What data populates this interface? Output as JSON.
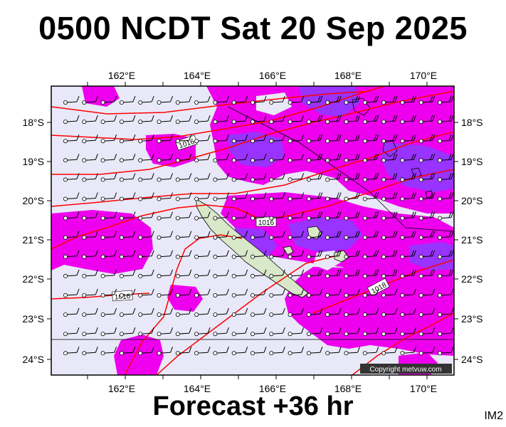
{
  "header": {
    "title": "0500 NCDT Sat 20 Sep 2025"
  },
  "footer": {
    "forecast_label": "Forecast +36 hr",
    "image_code": "IM2"
  },
  "map": {
    "copyright": "Copyright metvuw.com",
    "lon_ticks": [
      "162°E",
      "164°E",
      "166°E",
      "168°E",
      "170°E"
    ],
    "lat_ticks": [
      "18°S",
      "19°S",
      "20°S",
      "21°S",
      "22°S",
      "23°S",
      "24°S"
    ],
    "isobar_labels": [
      "1016",
      "1016",
      "1016",
      "1018"
    ],
    "colors": {
      "background": "#e8e8f8",
      "precip_light": "#ee00ee",
      "precip_heavy": "#9933ff",
      "land": "#d8e8c8",
      "isobar": "#ff0000"
    }
  }
}
